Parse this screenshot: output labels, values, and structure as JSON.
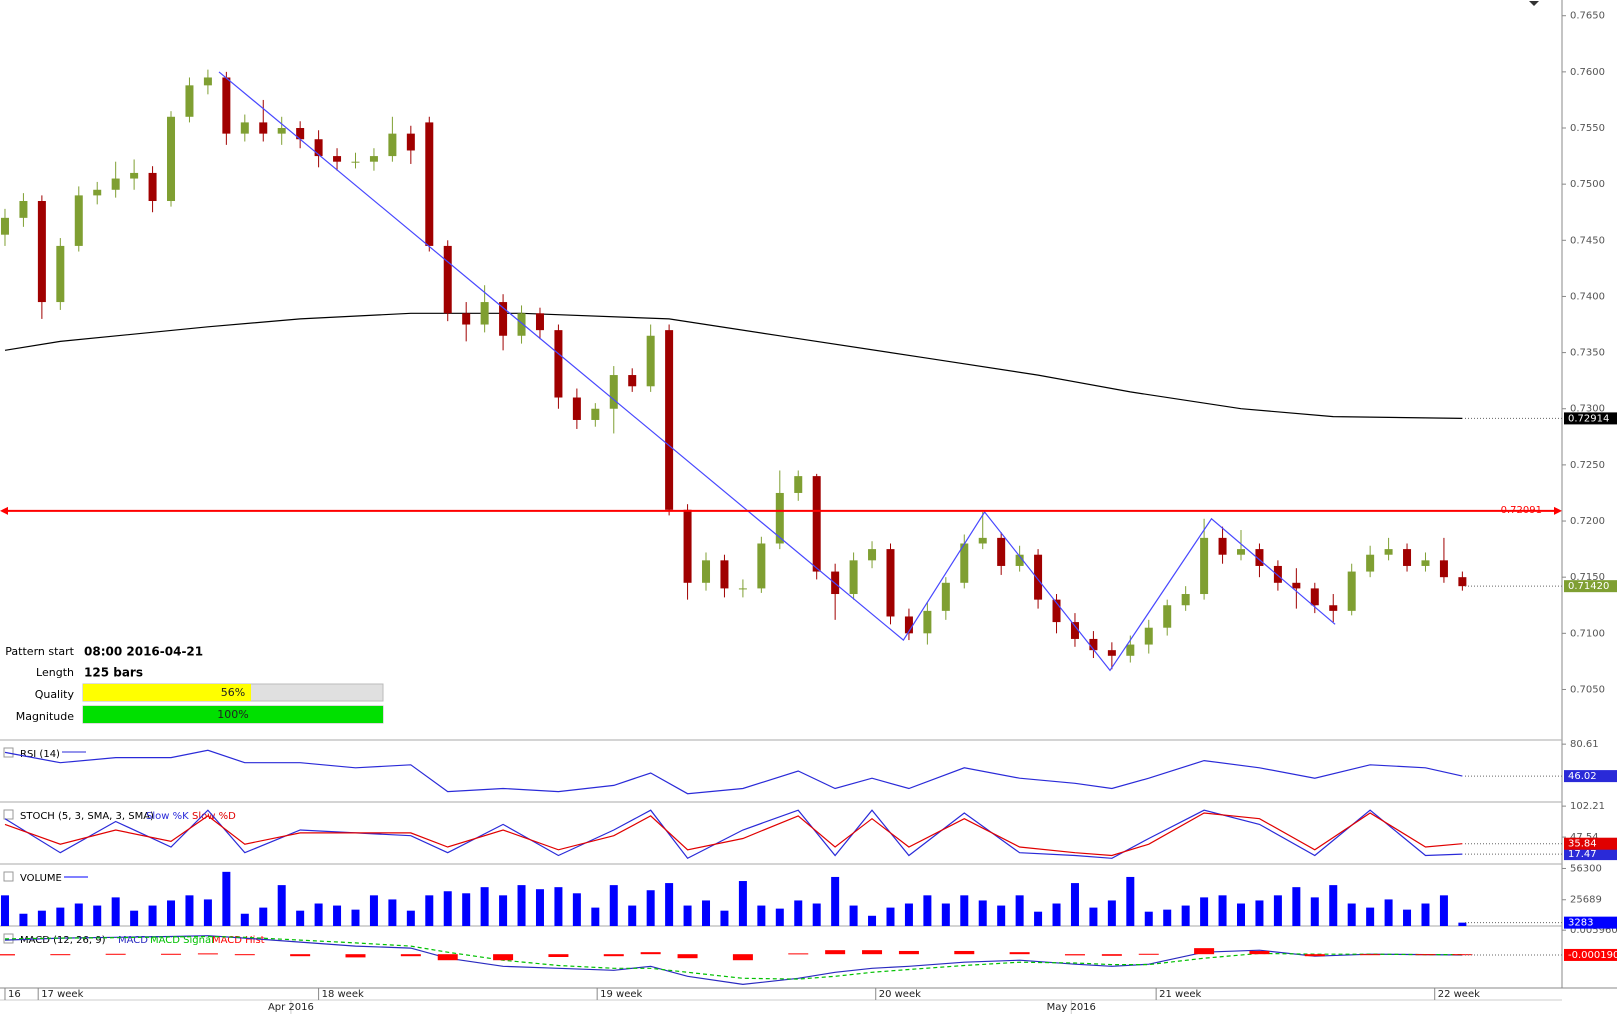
{
  "chart_data": [
    {
      "type": "candlestick",
      "xlim": [
        -0.27,
        84.4
      ],
      "ylim": [
        0.7005,
        0.7664
      ],
      "yticks": [
        {
          "value": 0.765,
          "label": "0.7650"
        },
        {
          "value": 0.76,
          "label": "0.7600"
        },
        {
          "value": 0.755,
          "label": "0.7550"
        },
        {
          "value": 0.75,
          "label": "0.7500"
        },
        {
          "value": 0.745,
          "label": "0.7450"
        },
        {
          "value": 0.74,
          "label": "0.7400"
        },
        {
          "value": 0.735,
          "label": "0.7350"
        },
        {
          "value": 0.73,
          "label": "0.7300"
        },
        {
          "value": 0.725,
          "label": "0.7250"
        },
        {
          "value": 0.72,
          "label": "0.7200"
        },
        {
          "value": 0.715,
          "label": "0.7150"
        },
        {
          "value": 0.71,
          "label": "0.7100"
        },
        {
          "value": 0.705,
          "label": "0.7050"
        }
      ],
      "xticks": [
        {
          "value": 0,
          "label": "16"
        },
        {
          "value": 1.8,
          "label": "17 week"
        },
        {
          "value": 17.0,
          "label": "18 week"
        },
        {
          "value": 32.1,
          "label": "19 week"
        },
        {
          "value": 47.2,
          "label": "20 week"
        },
        {
          "value": 62.4,
          "label": "21 week"
        },
        {
          "value": 77.5,
          "label": "22 week"
        }
      ],
      "month_ticks": [
        {
          "value": 15.5,
          "label": "Apr 2016"
        },
        {
          "value": 57.8,
          "label": "May 2016"
        }
      ],
      "up_color": "#7f9f32",
      "down_color": "#a00000",
      "ohlc": [
        [
          0.7455,
          0.7478,
          0.7445,
          0.747
        ],
        [
          0.747,
          0.7492,
          0.7462,
          0.7485
        ],
        [
          0.7485,
          0.749,
          0.738,
          0.7395
        ],
        [
          0.7395,
          0.7452,
          0.7388,
          0.7445
        ],
        [
          0.7445,
          0.7498,
          0.744,
          0.749
        ],
        [
          0.749,
          0.7502,
          0.7482,
          0.7495
        ],
        [
          0.7495,
          0.752,
          0.7488,
          0.7505
        ],
        [
          0.7505,
          0.7522,
          0.7495,
          0.751
        ],
        [
          0.751,
          0.7516,
          0.7475,
          0.7485
        ],
        [
          0.7485,
          0.7565,
          0.748,
          0.756
        ],
        [
          0.756,
          0.7595,
          0.7555,
          0.7588
        ],
        [
          0.7588,
          0.7602,
          0.758,
          0.7595
        ],
        [
          0.7595,
          0.76,
          0.7535,
          0.7545
        ],
        [
          0.7545,
          0.7562,
          0.7538,
          0.7555
        ],
        [
          0.7555,
          0.7575,
          0.7538,
          0.7545
        ],
        [
          0.7545,
          0.756,
          0.7535,
          0.755
        ],
        [
          0.755,
          0.7556,
          0.7532,
          0.754
        ],
        [
          0.754,
          0.7548,
          0.7515,
          0.7525
        ],
        [
          0.7525,
          0.7532,
          0.7512,
          0.752
        ],
        [
          0.752,
          0.7528,
          0.7514,
          0.752
        ],
        [
          0.752,
          0.7532,
          0.7512,
          0.7525
        ],
        [
          0.7525,
          0.756,
          0.752,
          0.7545
        ],
        [
          0.7545,
          0.7552,
          0.7518,
          0.753
        ],
        [
          0.7555,
          0.756,
          0.744,
          0.7445
        ],
        [
          0.7445,
          0.745,
          0.7378,
          0.7385
        ],
        [
          0.7385,
          0.7395,
          0.736,
          0.7375
        ],
        [
          0.7375,
          0.741,
          0.7368,
          0.7395
        ],
        [
          0.7395,
          0.7402,
          0.7352,
          0.7365
        ],
        [
          0.7365,
          0.7392,
          0.7358,
          0.7385
        ],
        [
          0.7385,
          0.739,
          0.7362,
          0.737
        ],
        [
          0.737,
          0.7375,
          0.73,
          0.731
        ],
        [
          0.731,
          0.7318,
          0.7282,
          0.729
        ],
        [
          0.729,
          0.7305,
          0.7284,
          0.73
        ],
        [
          0.73,
          0.7338,
          0.7278,
          0.733
        ],
        [
          0.733,
          0.7336,
          0.7315,
          0.732
        ],
        [
          0.732,
          0.7375,
          0.7315,
          0.7365
        ],
        [
          0.737,
          0.7375,
          0.7205,
          0.721
        ],
        [
          0.721,
          0.7215,
          0.713,
          0.7145
        ],
        [
          0.7145,
          0.7172,
          0.7138,
          0.7165
        ],
        [
          0.7165,
          0.717,
          0.7132,
          0.714
        ],
        [
          0.714,
          0.7148,
          0.7132,
          0.714
        ],
        [
          0.714,
          0.7186,
          0.7136,
          0.718
        ],
        [
          0.718,
          0.7245,
          0.7175,
          0.7225
        ],
        [
          0.7225,
          0.7245,
          0.7218,
          0.724
        ],
        [
          0.724,
          0.7242,
          0.7148,
          0.7155
        ],
        [
          0.7155,
          0.7162,
          0.7112,
          0.7135
        ],
        [
          0.7135,
          0.7172,
          0.713,
          0.7165
        ],
        [
          0.7165,
          0.7182,
          0.7158,
          0.7175
        ],
        [
          0.7175,
          0.718,
          0.7108,
          0.7115
        ],
        [
          0.7115,
          0.7122,
          0.7094,
          0.71
        ],
        [
          0.71,
          0.7128,
          0.709,
          0.712
        ],
        [
          0.712,
          0.715,
          0.7112,
          0.7145
        ],
        [
          0.7145,
          0.7188,
          0.714,
          0.718
        ],
        [
          0.718,
          0.7208,
          0.7175,
          0.7185
        ],
        [
          0.7185,
          0.719,
          0.7152,
          0.716
        ],
        [
          0.716,
          0.7178,
          0.7155,
          0.717
        ],
        [
          0.717,
          0.7175,
          0.7122,
          0.713
        ],
        [
          0.713,
          0.7135,
          0.71,
          0.711
        ],
        [
          0.711,
          0.7118,
          0.7088,
          0.7095
        ],
        [
          0.7095,
          0.7102,
          0.7078,
          0.7085
        ],
        [
          0.7085,
          0.7092,
          0.7068,
          0.708
        ],
        [
          0.708,
          0.7098,
          0.7074,
          0.709
        ],
        [
          0.709,
          0.7112,
          0.7082,
          0.7105
        ],
        [
          0.7105,
          0.713,
          0.7098,
          0.7125
        ],
        [
          0.7125,
          0.7142,
          0.712,
          0.7135
        ],
        [
          0.7135,
          0.7202,
          0.713,
          0.7185
        ],
        [
          0.7185,
          0.7195,
          0.7162,
          0.717
        ],
        [
          0.717,
          0.7192,
          0.7165,
          0.7175
        ],
        [
          0.7175,
          0.718,
          0.715,
          0.716
        ],
        [
          0.716,
          0.7165,
          0.7138,
          0.7145
        ],
        [
          0.7145,
          0.7158,
          0.7122,
          0.714
        ],
        [
          0.714,
          0.7145,
          0.7118,
          0.7125
        ],
        [
          0.7125,
          0.7135,
          0.711,
          0.712
        ],
        [
          0.712,
          0.7162,
          0.7116,
          0.7155
        ],
        [
          0.7155,
          0.7178,
          0.715,
          0.717
        ],
        [
          0.717,
          0.7185,
          0.7165,
          0.7175
        ],
        [
          0.7175,
          0.718,
          0.7155,
          0.716
        ],
        [
          0.716,
          0.7172,
          0.7155,
          0.7165
        ],
        [
          0.7165,
          0.7185,
          0.7145,
          0.715
        ],
        [
          0.715,
          0.7155,
          0.7138,
          0.7142
        ]
      ],
      "lines": [
        {
          "color": "#000000",
          "x": [
            0,
            3,
            11,
            16,
            22,
            28,
            36,
            42,
            50,
            56,
            61,
            67,
            72,
            79
          ],
          "values": [
            0.7352,
            0.736,
            0.7373,
            0.738,
            0.7385,
            0.7385,
            0.738,
            0.7365,
            0.7345,
            0.733,
            0.7315,
            0.73,
            0.7293,
            0.72914
          ]
        }
      ],
      "pattern": {
        "color": "#4848ff",
        "x": [
          11.6,
          48.7,
          53.1,
          59.9,
          65.4,
          72.1
        ],
        "values": [
          0.76,
          0.7094,
          0.7208,
          0.7067,
          0.7202,
          0.7108
        ]
      },
      "hline": 0.72091,
      "hline_color": "#ff0000",
      "last_price": {
        "value": 0.7142,
        "label": "0.71420"
      },
      "pattern_info": {
        "start_label": "Pattern start",
        "start": "08:00 2016-04-21",
        "length_label": "Length",
        "length": "125 bars",
        "quality_label": "Quality",
        "quality": {
          "value": 56,
          "label": "56%"
        },
        "quality_color": "#ffff00",
        "magnitude_label": "Magnitude",
        "magnitude": {
          "value": 100,
          "label": "100%"
        },
        "magnitude_color": "#00e000",
        "range": [
          0,
          100
        ]
      }
    },
    {
      "type": "line",
      "title": "RSI (14)",
      "ylim": [
        18,
        85.1
      ],
      "yticks": [
        80.61
      ],
      "x": [
        0,
        3,
        6,
        9,
        11,
        13,
        16,
        19,
        22,
        24,
        27,
        30,
        33,
        35,
        37,
        40,
        43,
        45,
        47,
        49,
        52,
        55,
        58,
        60,
        62,
        65,
        68,
        71,
        74,
        77,
        79
      ],
      "series": [
        {
          "color": "#2a2ad8",
          "tag": true,
          "values": [
            71.7,
            60.5,
            66,
            66,
            73.9,
            60.5,
            60.5,
            55,
            58.3,
            29.3,
            32.6,
            29.3,
            36,
            49.4,
            27,
            32.6,
            51.6,
            32.6,
            43.8,
            32.6,
            55,
            43.8,
            38.2,
            32.6,
            43.8,
            62.8,
            55,
            43.8,
            58.3,
            55,
            46.02
          ]
        }
      ]
    },
    {
      "type": "line",
      "title": "STOCH (5, 3, SMA, 3, SMA)",
      "ylim": [
        0,
        109.5
      ],
      "yticks": [
        102.21,
        47.54
      ],
      "x": [
        0,
        3,
        6,
        9,
        11,
        13,
        16,
        19,
        22,
        24,
        27,
        30,
        33,
        35,
        37,
        40,
        43,
        45,
        47,
        49,
        52,
        55,
        58,
        60,
        62,
        65,
        68,
        71,
        74,
        77,
        79
      ],
      "series": [
        {
          "name": "Slow %K",
          "color": "#2a2ad8",
          "tag": true,
          "values": [
            80,
            20,
            75,
            30,
            95,
            20,
            60,
            55,
            50,
            20,
            70,
            15,
            60,
            95,
            10,
            60,
            95,
            15,
            95,
            15,
            90,
            20,
            15,
            10,
            45,
            95,
            70,
            15,
            95,
            15,
            17.47
          ]
        },
        {
          "name": "Slow %D",
          "color": "#e00000",
          "tag": true,
          "values": [
            70,
            35,
            60,
            40,
            85,
            35,
            55,
            55,
            55,
            30,
            60,
            25,
            50,
            85,
            25,
            45,
            85,
            30,
            80,
            30,
            80,
            30,
            20,
            15,
            35,
            90,
            80,
            25,
            90,
            30,
            35.84
          ]
        }
      ]
    },
    {
      "type": "bar",
      "title": "VOLUME",
      "ylim": [
        0,
        60670
      ],
      "yticks": [
        56300,
        25689
      ],
      "series": [
        {
          "color": "#0000ff",
          "tag": true,
          "values": [
            30000,
            12000,
            15000,
            18000,
            22000,
            20000,
            28000,
            15000,
            20000,
            25000,
            30000,
            26000,
            53000,
            12000,
            18000,
            40000,
            15000,
            22000,
            20000,
            16000,
            30000,
            26000,
            15000,
            30000,
            34000,
            32000,
            38000,
            30000,
            40000,
            36000,
            38000,
            32000,
            18000,
            40000,
            20000,
            35000,
            42000,
            20000,
            25000,
            15000,
            44000,
            20000,
            17000,
            25000,
            22000,
            48000,
            20000,
            10000,
            18000,
            22000,
            30000,
            22000,
            30000,
            25000,
            20000,
            30000,
            14000,
            22000,
            42000,
            18000,
            25000,
            48000,
            14000,
            16000,
            20000,
            28000,
            30000,
            22000,
            25000,
            30000,
            38000,
            28000,
            40000,
            22000,
            18000,
            26000,
            16000,
            22000,
            30000,
            3283
          ]
        }
      ]
    },
    {
      "type": "line",
      "title": "MACD (12, 26, 9)",
      "ylim": [
        -0.0084,
        0.007
      ],
      "yticks": [
        0.0059608
      ],
      "x": [
        0,
        3,
        6,
        9,
        11,
        13,
        16,
        19,
        22,
        24,
        27,
        30,
        33,
        35,
        37,
        40,
        43,
        45,
        47,
        49,
        52,
        55,
        58,
        60,
        62,
        65,
        68,
        71,
        74,
        77,
        79
      ],
      "series": [
        {
          "name": "MACD",
          "color": "#2a2ac0",
          "values": [
            0.0035,
            0.004,
            0.0042,
            0.0044,
            0.0046,
            0.004,
            0.003,
            0.002,
            0.0015,
            -0.001,
            -0.003,
            -0.0035,
            -0.004,
            -0.003,
            -0.0055,
            -0.0075,
            -0.006,
            -0.0045,
            -0.0035,
            -0.003,
            -0.002,
            -0.0015,
            -0.0025,
            -0.003,
            -0.0025,
            0.0005,
            0.001,
            -0.0005,
            0,
            -0.0001,
            -0.0002
          ]
        },
        {
          "name": "MACD Signal",
          "color": "#00c000",
          "kind": "dashed",
          "values": [
            0.0038,
            0.004,
            0.0041,
            0.0043,
            0.0044,
            0.0042,
            0.0035,
            0.0028,
            0.002,
            0.0005,
            -0.0015,
            -0.0028,
            -0.0035,
            -0.0035,
            -0.0045,
            -0.006,
            -0.0062,
            -0.0055,
            -0.0045,
            -0.0038,
            -0.0028,
            -0.002,
            -0.0022,
            -0.0026,
            -0.0026,
            -0.001,
            0.0002,
            0,
            0,
            -0.0001,
            -0.0001
          ]
        },
        {
          "name": "MACD Hist",
          "color": "#ff0000",
          "kind": "bar",
          "tag": true,
          "values": [
            -0.0003,
            0,
            0.0001,
            0.0001,
            0.0002,
            -0.0002,
            -0.0005,
            -0.0008,
            -0.0005,
            -0.0015,
            -0.0015,
            -0.0007,
            -0.0005,
            0.0005,
            -0.001,
            -0.0015,
            0.0002,
            0.001,
            0.001,
            0.0008,
            0.0008,
            0.0005,
            -0.0003,
            -0.0004,
            0.0001,
            0.0015,
            0.0008,
            -0.0005,
            0,
            0,
            -0.0001903
          ]
        }
      ]
    }
  ]
}
